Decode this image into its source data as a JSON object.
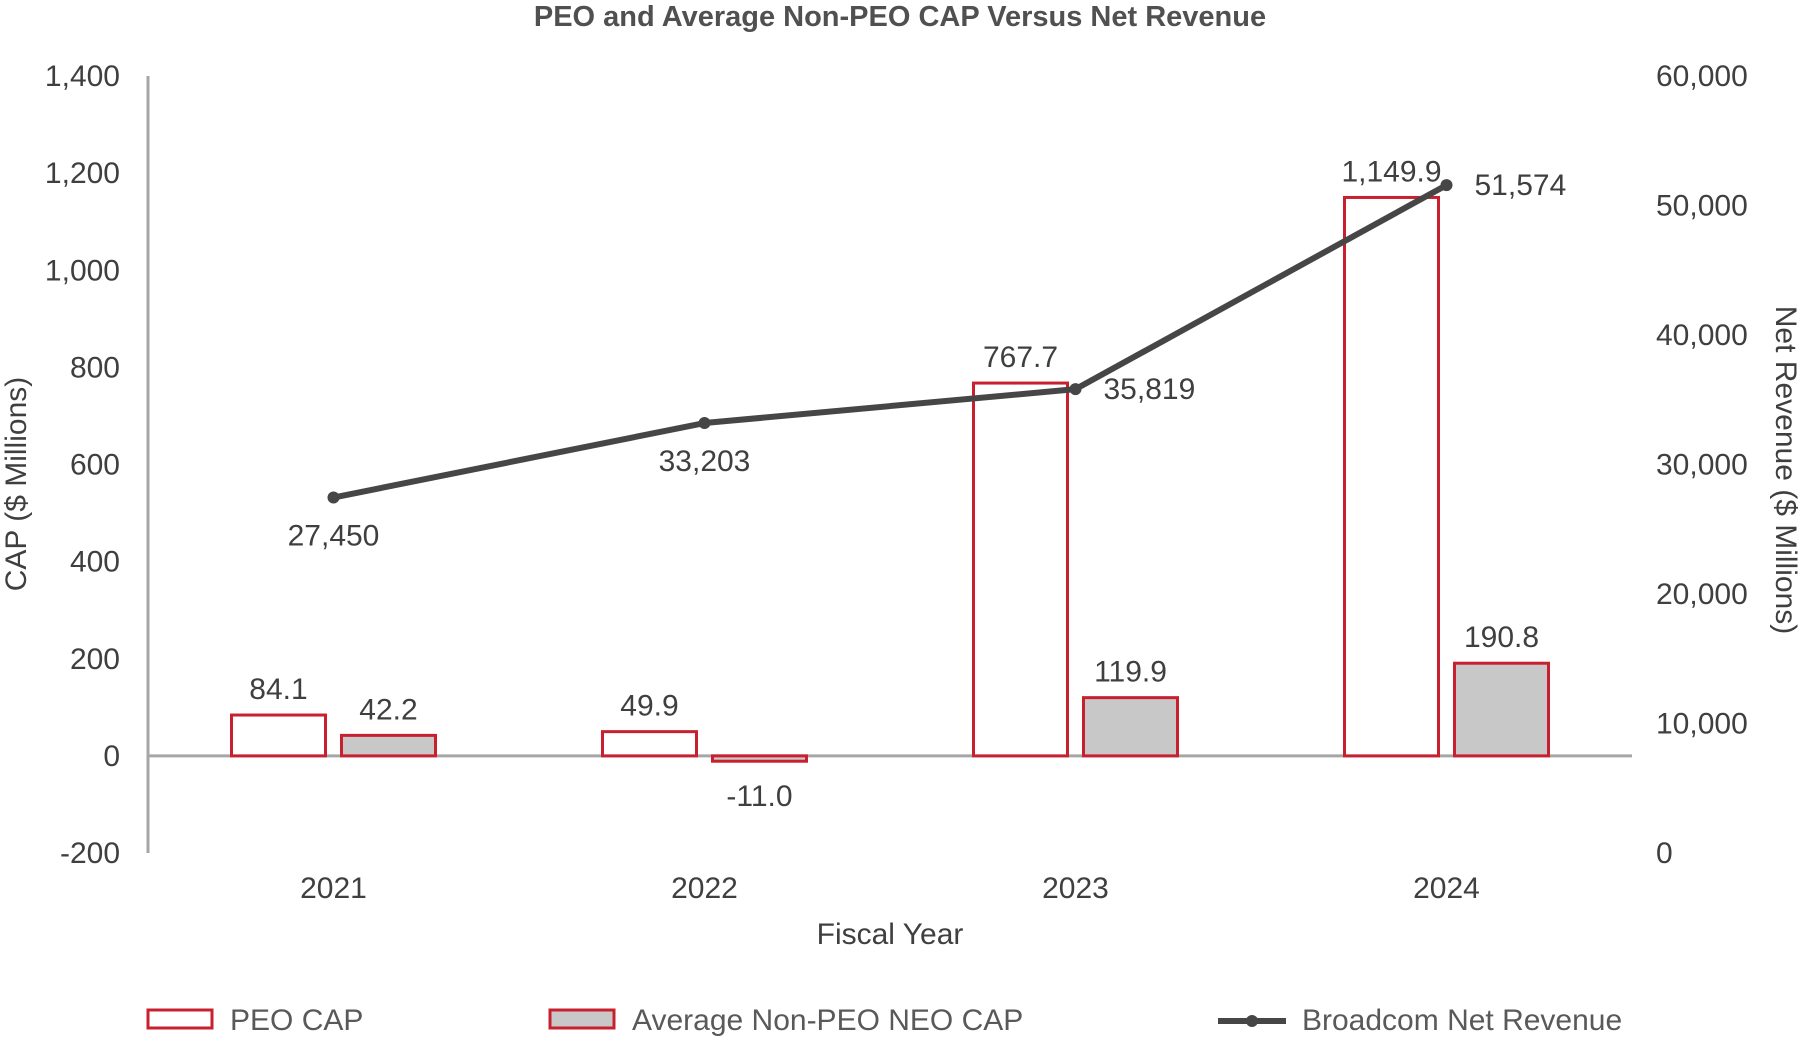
{
  "chart_data": {
    "type": "bar",
    "title": "PEO and Average Non-PEO CAP Versus Net Revenue",
    "xlabel": "Fiscal Year",
    "ylabel": "CAP ($ Millions)",
    "y2label": "Net Revenue ($ Millions)",
    "categories": [
      "2021",
      "2022",
      "2023",
      "2024"
    ],
    "ylim": [
      -200,
      1400
    ],
    "yticks": [
      -200,
      0,
      200,
      400,
      600,
      800,
      1000,
      1200,
      1400
    ],
    "yticklabels": [
      "-200",
      "0",
      "200",
      "400",
      "600",
      "800",
      "1,000",
      "1,200",
      "1,400"
    ],
    "y2lim": [
      0,
      60000
    ],
    "y2ticks": [
      0,
      10000,
      20000,
      30000,
      40000,
      50000,
      60000
    ],
    "y2ticklabels": [
      "0",
      "10,000",
      "20,000",
      "30,000",
      "40,000",
      "50,000",
      "60,000"
    ],
    "series": [
      {
        "name": "PEO CAP",
        "kind": "bar",
        "axis": "left",
        "values": [
          84.1,
          49.9,
          767.7,
          1149.9
        ],
        "labels": [
          "84.1",
          "49.9",
          "767.7",
          "1,149.9"
        ],
        "fill": "#ffffff",
        "stroke": "#c8202f"
      },
      {
        "name": "Average Non-PEO NEO CAP",
        "kind": "bar",
        "axis": "left",
        "values": [
          42.2,
          -11.0,
          119.9,
          190.8
        ],
        "labels": [
          "42.2",
          "-11.0",
          "119.9",
          "190.8"
        ],
        "fill": "#c8c8c8",
        "stroke": "#c8202f"
      },
      {
        "name": "Broadcom Net Revenue",
        "kind": "line",
        "axis": "right",
        "values": [
          27450,
          33203,
          35819,
          51574
        ],
        "labels": [
          "27,450",
          "33,203",
          "35,819",
          "51,574"
        ],
        "color": "#464646"
      }
    ],
    "legend": "bottom"
  }
}
